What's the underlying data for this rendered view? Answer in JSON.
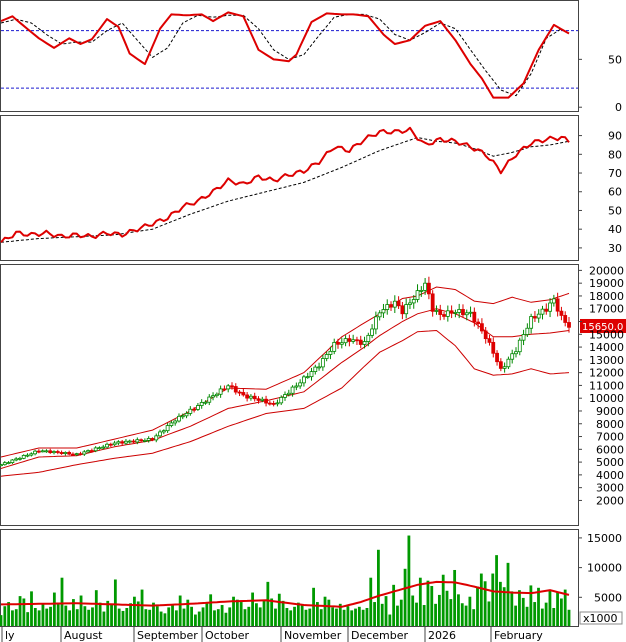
{
  "chart_data": [
    {
      "panel": "stochastic",
      "type": "line",
      "y_ticks": [
        "0",
        "50"
      ],
      "ylim": [
        -5,
        112
      ],
      "reference_lines": [
        80,
        20
      ],
      "sessions": 150,
      "series": [
        {
          "style": "solid",
          "color": "#dd0000",
          "x": [
            0,
            3,
            6,
            10,
            14,
            18,
            21,
            24,
            28,
            31,
            34,
            38,
            42,
            45,
            49,
            53,
            56,
            60,
            64,
            68,
            72,
            76,
            78,
            82,
            86,
            90,
            93,
            97,
            101,
            104,
            108,
            112,
            116,
            120,
            124,
            127,
            130,
            134,
            138,
            142,
            146,
            150
          ],
          "values": [
            90,
            95,
            85,
            72,
            62,
            72,
            66,
            71,
            92,
            84,
            56,
            45,
            82,
            97,
            96,
            97,
            90,
            99,
            95,
            60,
            50,
            48,
            55,
            89,
            98,
            97,
            97,
            95,
            76,
            66,
            70,
            85,
            90,
            70,
            45,
            30,
            10,
            10,
            25,
            60,
            86,
            77
          ]
        },
        {
          "style": "dashed",
          "color": "#000000",
          "x": [
            0,
            4,
            8,
            12,
            16,
            20,
            24,
            28,
            32,
            36,
            40,
            44,
            48,
            52,
            56,
            60,
            64,
            68,
            72,
            76,
            80,
            84,
            88,
            92,
            96,
            100,
            104,
            108,
            112,
            116,
            120,
            124,
            128,
            132,
            136,
            140,
            144,
            148,
            150
          ],
          "values": [
            88,
            92,
            88,
            76,
            66,
            68,
            68,
            80,
            88,
            70,
            52,
            62,
            88,
            96,
            94,
            96,
            96,
            82,
            60,
            50,
            55,
            75,
            94,
            97,
            97,
            92,
            76,
            70,
            78,
            88,
            82,
            60,
            38,
            18,
            12,
            35,
            72,
            82,
            77
          ]
        }
      ],
      "month_labels": [
        "ly",
        "August",
        "September",
        "October",
        "November",
        "December",
        "2026",
        "February"
      ]
    },
    {
      "panel": "rsi",
      "type": "line",
      "y_ticks": [
        "30",
        "40",
        "50",
        "60",
        "70",
        "80",
        "90"
      ],
      "ylim": [
        23,
        101
      ],
      "series": [
        {
          "style": "solid",
          "color": "#dd0000",
          "x": [
            0,
            4,
            8,
            12,
            16,
            20,
            24,
            28,
            32,
            36,
            40,
            44,
            48,
            52,
            56,
            60,
            64,
            68,
            72,
            76,
            80,
            84,
            88,
            92,
            96,
            100,
            104,
            108,
            112,
            116,
            120,
            124,
            128,
            132,
            136,
            140,
            144,
            148,
            150
          ],
          "values": [
            33,
            38,
            37,
            38,
            36,
            37,
            36,
            38,
            37,
            40,
            43,
            46,
            52,
            55,
            60,
            66,
            64,
            68,
            66,
            69,
            71,
            76,
            84,
            82,
            88,
            92,
            92,
            93,
            85,
            88,
            87,
            84,
            80,
            71,
            80,
            86,
            88,
            89,
            87
          ]
        },
        {
          "style": "dashed",
          "color": "#000000",
          "x": [
            0,
            10,
            20,
            30,
            40,
            50,
            60,
            70,
            80,
            90,
            100,
            110,
            115,
            120,
            125,
            130,
            135,
            140,
            145,
            150
          ],
          "values": [
            33,
            35,
            36,
            37,
            40,
            48,
            55,
            60,
            65,
            73,
            82,
            89,
            87,
            86,
            83,
            79,
            81,
            84,
            85,
            87
          ]
        }
      ]
    },
    {
      "panel": "price",
      "type": "candlestick",
      "y_ticks": [
        "2000",
        "3000",
        "4000",
        "5000",
        "6000",
        "7000",
        "8000",
        "9000",
        "10000",
        "11000",
        "12000",
        "13000",
        "14000",
        "15000",
        "16000",
        "17000",
        "18000",
        "19000",
        "20000"
      ],
      "ylim": [
        0,
        20500
      ],
      "last_price": "15650.0",
      "bollinger": {
        "x": [
          0,
          10,
          20,
          30,
          40,
          50,
          60,
          70,
          80,
          90,
          96,
          100,
          106,
          110,
          115,
          120,
          125,
          130,
          135,
          140,
          145,
          150
        ],
        "upper": [
          5400,
          6100,
          6100,
          6800,
          7500,
          9000,
          10800,
          10700,
          12000,
          14800,
          15900,
          16600,
          17800,
          18000,
          18700,
          18500,
          17600,
          17400,
          17900,
          17500,
          17700,
          18200
        ],
        "middle": [
          4500,
          5400,
          5500,
          6200,
          6700,
          7800,
          9200,
          9800,
          10500,
          12800,
          14000,
          14900,
          16000,
          16600,
          17000,
          16600,
          15900,
          14800,
          14800,
          15000,
          15100,
          15300
        ],
        "lower": [
          3900,
          4200,
          4800,
          5300,
          5700,
          6600,
          7800,
          8800,
          9200,
          10800,
          12500,
          13600,
          14500,
          15200,
          15300,
          14100,
          12300,
          11800,
          11900,
          12300,
          11900,
          12000
        ]
      },
      "price_path": {
        "x": [
          0,
          10,
          20,
          30,
          40,
          46,
          52,
          60,
          64,
          68,
          72,
          78,
          84,
          88,
          92,
          96,
          100,
          104,
          106,
          110,
          112,
          114,
          116,
          120,
          124,
          128,
          130,
          132,
          136,
          140,
          144,
          146,
          148,
          150
        ],
        "close": [
          4800,
          5900,
          5600,
          6500,
          6800,
          8300,
          9400,
          11000,
          10200,
          9900,
          9500,
          11000,
          12600,
          14200,
          14600,
          14300,
          16800,
          17500,
          16800,
          18200,
          19000,
          17000,
          16500,
          16800,
          16600,
          14800,
          13600,
          12200,
          13800,
          16200,
          17000,
          17700,
          16300,
          15650
        ]
      }
    },
    {
      "panel": "volume",
      "type": "bar",
      "y_ticks": [
        "5000",
        "10000",
        "15000"
      ],
      "ylim": [
        0,
        16500
      ],
      "unit_label": "x1000",
      "bars": [
        2000,
        3500,
        4200,
        2800,
        3000,
        5200,
        4800,
        2500,
        6000,
        3200,
        2800,
        3900,
        3100,
        3400,
        5800,
        4100,
        8300,
        3600,
        2800,
        4700,
        3000,
        5300,
        3500,
        2900,
        3300,
        6200,
        4100,
        2600,
        4400,
        3700,
        8000,
        3100,
        2700,
        3200,
        4000,
        5100,
        4300,
        6300,
        3000,
        2900,
        4100,
        3500,
        2600,
        2300,
        3300,
        3800,
        2800,
        5300,
        3100,
        4600,
        3400,
        2100,
        2600,
        3300,
        4200,
        5500,
        2800,
        3000,
        3700,
        2400,
        3300,
        5100,
        4600,
        4200,
        3000,
        3400,
        5800,
        4000,
        3300,
        4500,
        7600,
        4800,
        3100,
        5600,
        4400,
        3200,
        2800,
        3400,
        4100,
        3700,
        2900,
        3100,
        6600,
        4200,
        3000,
        5100,
        4600,
        3300,
        3100,
        3900,
        2900,
        3500,
        2800,
        3100,
        3400,
        2900,
        3200,
        8300,
        4200,
        13000,
        3900,
        5200,
        2100,
        7100,
        3600,
        4600,
        9800,
        15400,
        5300,
        4100,
        8300,
        3700,
        7800,
        6900,
        3900,
        5400,
        8800,
        6100,
        4700,
        9600,
        5500,
        4000,
        3600,
        5100,
        3000,
        6800,
        9000,
        7700,
        4300,
        9000,
        12100,
        7600,
        6700,
        10800,
        6000,
        3600,
        6200,
        4900,
        3400,
        7000,
        4200,
        6600,
        3100,
        4100,
        6100,
        3200,
        5800,
        4800,
        6300,
        2900
      ],
      "ma": {
        "x": [
          0,
          10,
          20,
          30,
          40,
          50,
          60,
          70,
          80,
          90,
          95,
          100,
          105,
          110,
          115,
          120,
          125,
          130,
          135,
          140,
          145,
          150
        ],
        "values": [
          3800,
          3900,
          4000,
          3800,
          3600,
          3900,
          4300,
          4500,
          3700,
          3400,
          4200,
          5300,
          6200,
          7100,
          7600,
          7500,
          6800,
          6000,
          5800,
          5700,
          6200,
          5400
        ]
      }
    }
  ]
}
